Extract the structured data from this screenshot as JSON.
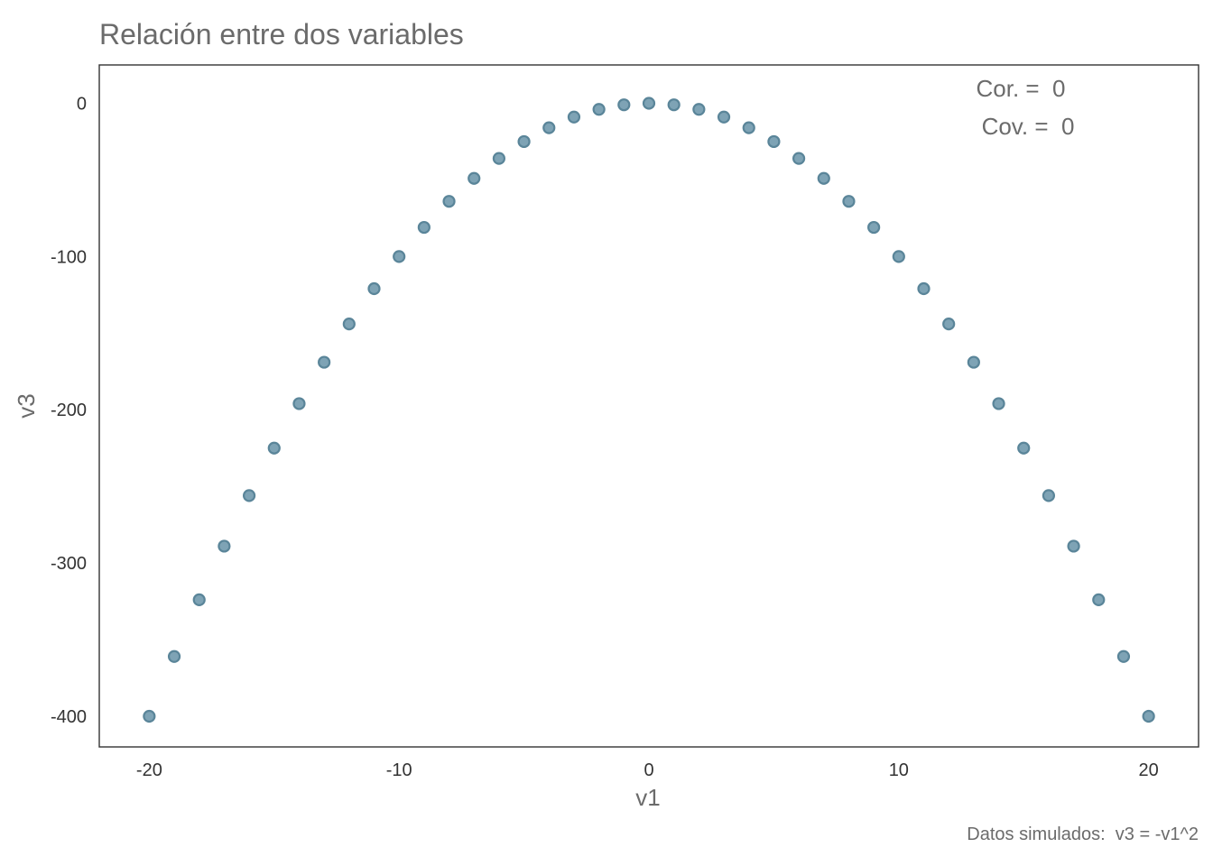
{
  "chart_data": {
    "type": "scatter",
    "title": "Relación entre dos variables",
    "xlabel": "v1",
    "ylabel": "v3",
    "xlim": [
      -22,
      22
    ],
    "ylim": [
      -420,
      25
    ],
    "xticks": [
      -20,
      -10,
      0,
      10,
      20
    ],
    "xtick_labels": [
      "-20",
      "-10",
      "0",
      "10",
      "20"
    ],
    "yticks": [
      0,
      -100,
      -200,
      -300,
      -400
    ],
    "ytick_labels": [
      "0",
      "-100",
      "-200",
      "-300",
      "-400"
    ],
    "grid": false,
    "annotations": [
      "Cor. =  0",
      "Cov. =  0"
    ],
    "caption": "Datos simulados:  v3 = -v1^2",
    "point_fill": "#7ea3b5",
    "point_stroke": "#5a8599",
    "series": [
      {
        "x": [
          -20,
          -19,
          -18,
          -17,
          -16,
          -15,
          -14,
          -13,
          -12,
          -11,
          -10,
          -9,
          -8,
          -7,
          -6,
          -5,
          -4,
          -3,
          -2,
          -1,
          0,
          1,
          2,
          3,
          4,
          5,
          6,
          7,
          8,
          9,
          10,
          11,
          12,
          13,
          14,
          15,
          16,
          17,
          18,
          19,
          20
        ],
        "y": [
          -400,
          -361,
          -324,
          -289,
          -256,
          -225,
          -196,
          -169,
          -144,
          -121,
          -100,
          -81,
          -64,
          -49,
          -36,
          -25,
          -16,
          -9,
          -4,
          -1,
          0,
          -1,
          -4,
          -9,
          -16,
          -25,
          -36,
          -49,
          -64,
          -81,
          -100,
          -121,
          -144,
          -169,
          -196,
          -225,
          -256,
          -289,
          -324,
          -361,
          -400
        ]
      }
    ]
  }
}
